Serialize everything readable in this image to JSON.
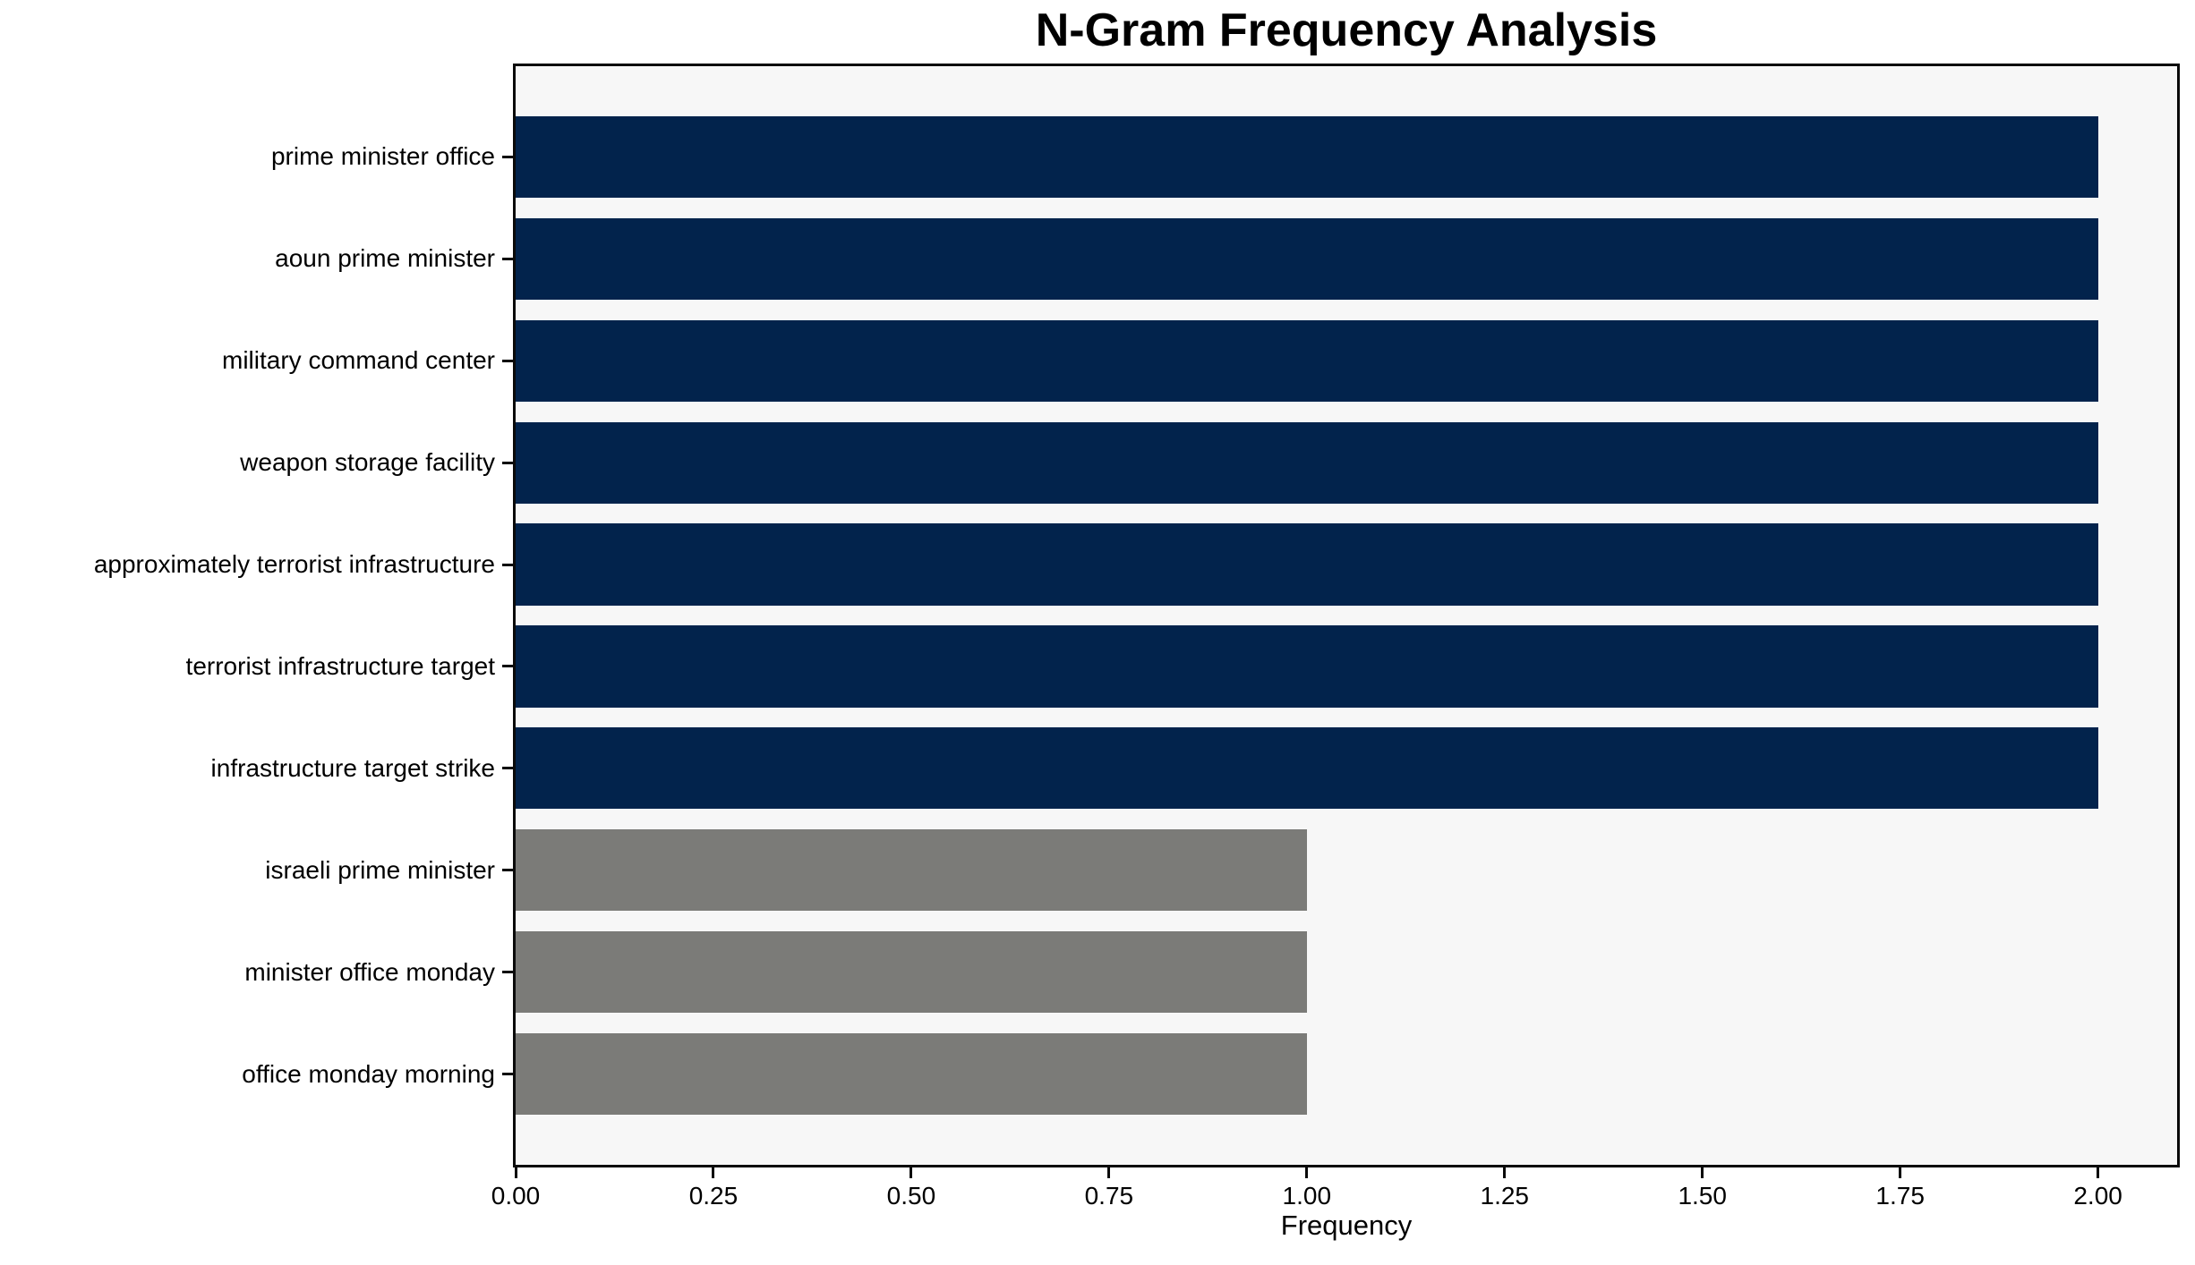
{
  "chart_data": {
    "type": "bar",
    "orientation": "horizontal",
    "title": "N-Gram Frequency Analysis",
    "xlabel": "Frequency",
    "ylabel": "",
    "categories": [
      "prime minister office",
      "aoun prime minister",
      "military command center",
      "weapon storage facility",
      "approximately terrorist infrastructure",
      "terrorist infrastructure target",
      "infrastructure target strike",
      "israeli prime minister",
      "minister office monday",
      "office monday morning"
    ],
    "values": [
      2,
      2,
      2,
      2,
      2,
      2,
      2,
      1,
      1,
      1
    ],
    "bar_colors": [
      "#02234c",
      "#02234c",
      "#02234c",
      "#02234c",
      "#02234c",
      "#02234c",
      "#02234c",
      "#7b7b78",
      "#7b7b78",
      "#7b7b78"
    ],
    "xlim": [
      0,
      2.1
    ],
    "xticks": [
      0,
      0.25,
      0.5,
      0.75,
      1.0,
      1.25,
      1.5,
      1.75,
      2.0
    ],
    "xtick_labels": [
      "0.00",
      "0.25",
      "0.50",
      "0.75",
      "1.00",
      "1.25",
      "1.50",
      "1.75",
      "2.00"
    ],
    "grid": "off",
    "legend": "none",
    "plot_background": "#f7f7f7",
    "figure_background": "#ffffff",
    "bar_height_fraction": 0.8
  }
}
